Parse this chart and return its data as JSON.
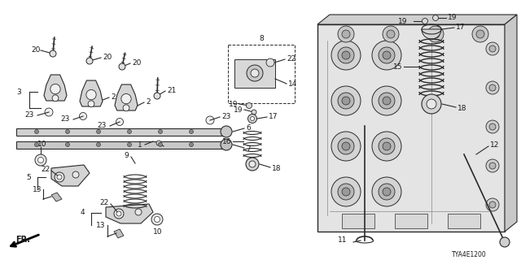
{
  "background_color": "#ffffff",
  "diagram_code": "TYA4E1200",
  "text_color": "#1a1a1a",
  "line_color": "#2a2a2a",
  "part_color": "#c8c8c8",
  "part_edge": "#2a2a2a"
}
